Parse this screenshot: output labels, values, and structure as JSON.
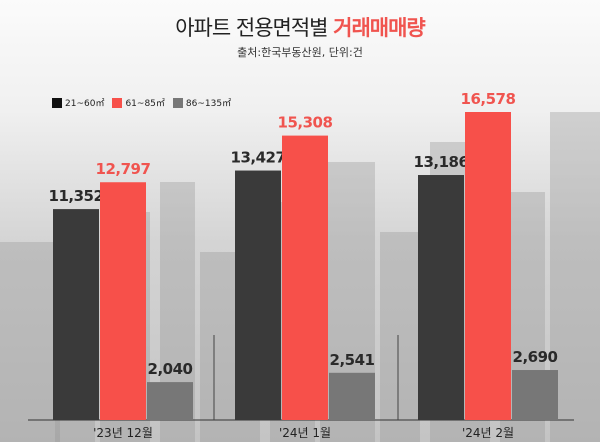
{
  "title": {
    "main": "아파트 전용면적별 ",
    "highlight": "거래매매량"
  },
  "subtitle": "출처:한국부동산원, 단위:건",
  "colors": {
    "21~60㎡": "#3a3a3a",
    "61~85㎡": "#f7504a",
    "86~135㎡": "#777777",
    "highlight": "#f0544f"
  },
  "chart_data": {
    "type": "bar",
    "categories": [
      "'23년 12월",
      "'24년 1월",
      "'24년 2월"
    ],
    "series": [
      {
        "name": "21~60㎡",
        "values": [
          11352,
          13427,
          13186
        ]
      },
      {
        "name": "61~85㎡",
        "values": [
          12797,
          15308,
          16578
        ]
      },
      {
        "name": "86~135㎡",
        "values": [
          2040,
          2541,
          2690
        ]
      }
    ],
    "data_labels": [
      [
        "11,352",
        "13,427",
        "13,186"
      ],
      [
        "12,797",
        "15,308",
        "16,578"
      ],
      [
        "2,040",
        "2,541",
        "2,690"
      ]
    ],
    "legend": "top-left",
    "grid": false
  }
}
